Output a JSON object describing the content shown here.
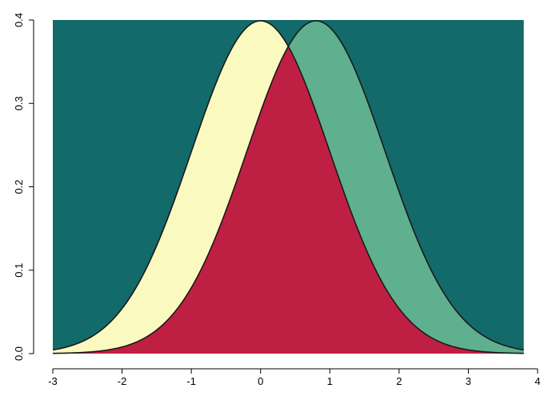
{
  "chart_data": {
    "type": "area",
    "title": "",
    "xlabel": "",
    "ylabel": "",
    "xlim": [
      -3,
      3.8
    ],
    "ylim": [
      0,
      0.4
    ],
    "x_ticks": [
      -3,
      -2,
      -1,
      0,
      1,
      2,
      3,
      4
    ],
    "y_ticks": [
      0.0,
      0.1,
      0.2,
      0.3,
      0.4
    ],
    "x_tick_labels": [
      "-3",
      "-2",
      "-1",
      "0",
      "1",
      "2",
      "3",
      "4"
    ],
    "y_tick_labels": [
      "0.0",
      "0.1",
      "0.2",
      "0.3",
      "0.4"
    ],
    "grid": false,
    "legend": "none",
    "series": [
      {
        "distribution": "normal",
        "mean": 0,
        "sd": 1,
        "peak": 0.399,
        "fill": "#fafac0"
      },
      {
        "distribution": "normal",
        "mean": 0.8,
        "sd": 1,
        "peak": 0.399,
        "fill": "#5fb08f"
      },
      {
        "region": "overlap",
        "fill": "#c01f44"
      }
    ],
    "background_fill": "#136a6a"
  }
}
